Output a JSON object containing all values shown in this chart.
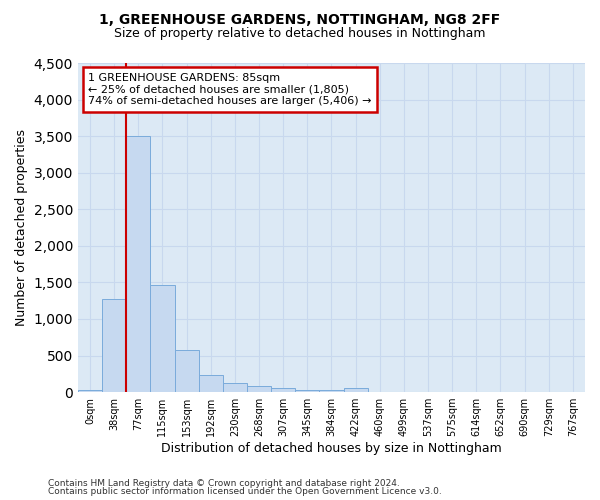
{
  "title": "1, GREENHOUSE GARDENS, NOTTINGHAM, NG8 2FF",
  "subtitle": "Size of property relative to detached houses in Nottingham",
  "xlabel": "Distribution of detached houses by size in Nottingham",
  "ylabel": "Number of detached properties",
  "footer_line1": "Contains HM Land Registry data © Crown copyright and database right 2024.",
  "footer_line2": "Contains public sector information licensed under the Open Government Licence v3.0.",
  "bar_labels": [
    "0sqm",
    "38sqm",
    "77sqm",
    "115sqm",
    "153sqm",
    "192sqm",
    "230sqm",
    "268sqm",
    "307sqm",
    "345sqm",
    "384sqm",
    "422sqm",
    "460sqm",
    "499sqm",
    "537sqm",
    "575sqm",
    "614sqm",
    "652sqm",
    "690sqm",
    "729sqm",
    "767sqm"
  ],
  "bar_values": [
    30,
    1270,
    3500,
    1470,
    580,
    240,
    130,
    85,
    50,
    30,
    25,
    55,
    5,
    0,
    0,
    0,
    0,
    0,
    0,
    0,
    0
  ],
  "bar_color": "#c6d9f0",
  "bar_edge_color": "#7aabdb",
  "ylim": [
    0,
    4500
  ],
  "yticks": [
    0,
    500,
    1000,
    1500,
    2000,
    2500,
    3000,
    3500,
    4000,
    4500
  ],
  "grid_color": "#c8d8ee",
  "property_line_bar_index": 2,
  "annotation_text": "1 GREENHOUSE GARDENS: 85sqm\n← 25% of detached houses are smaller (1,805)\n74% of semi-detached houses are larger (5,406) →",
  "annotation_box_facecolor": "#ffffff",
  "annotation_box_edgecolor": "#cc0000",
  "property_line_color": "#cc0000",
  "fig_bg_color": "#ffffff",
  "plot_bg_color": "#dce9f5"
}
